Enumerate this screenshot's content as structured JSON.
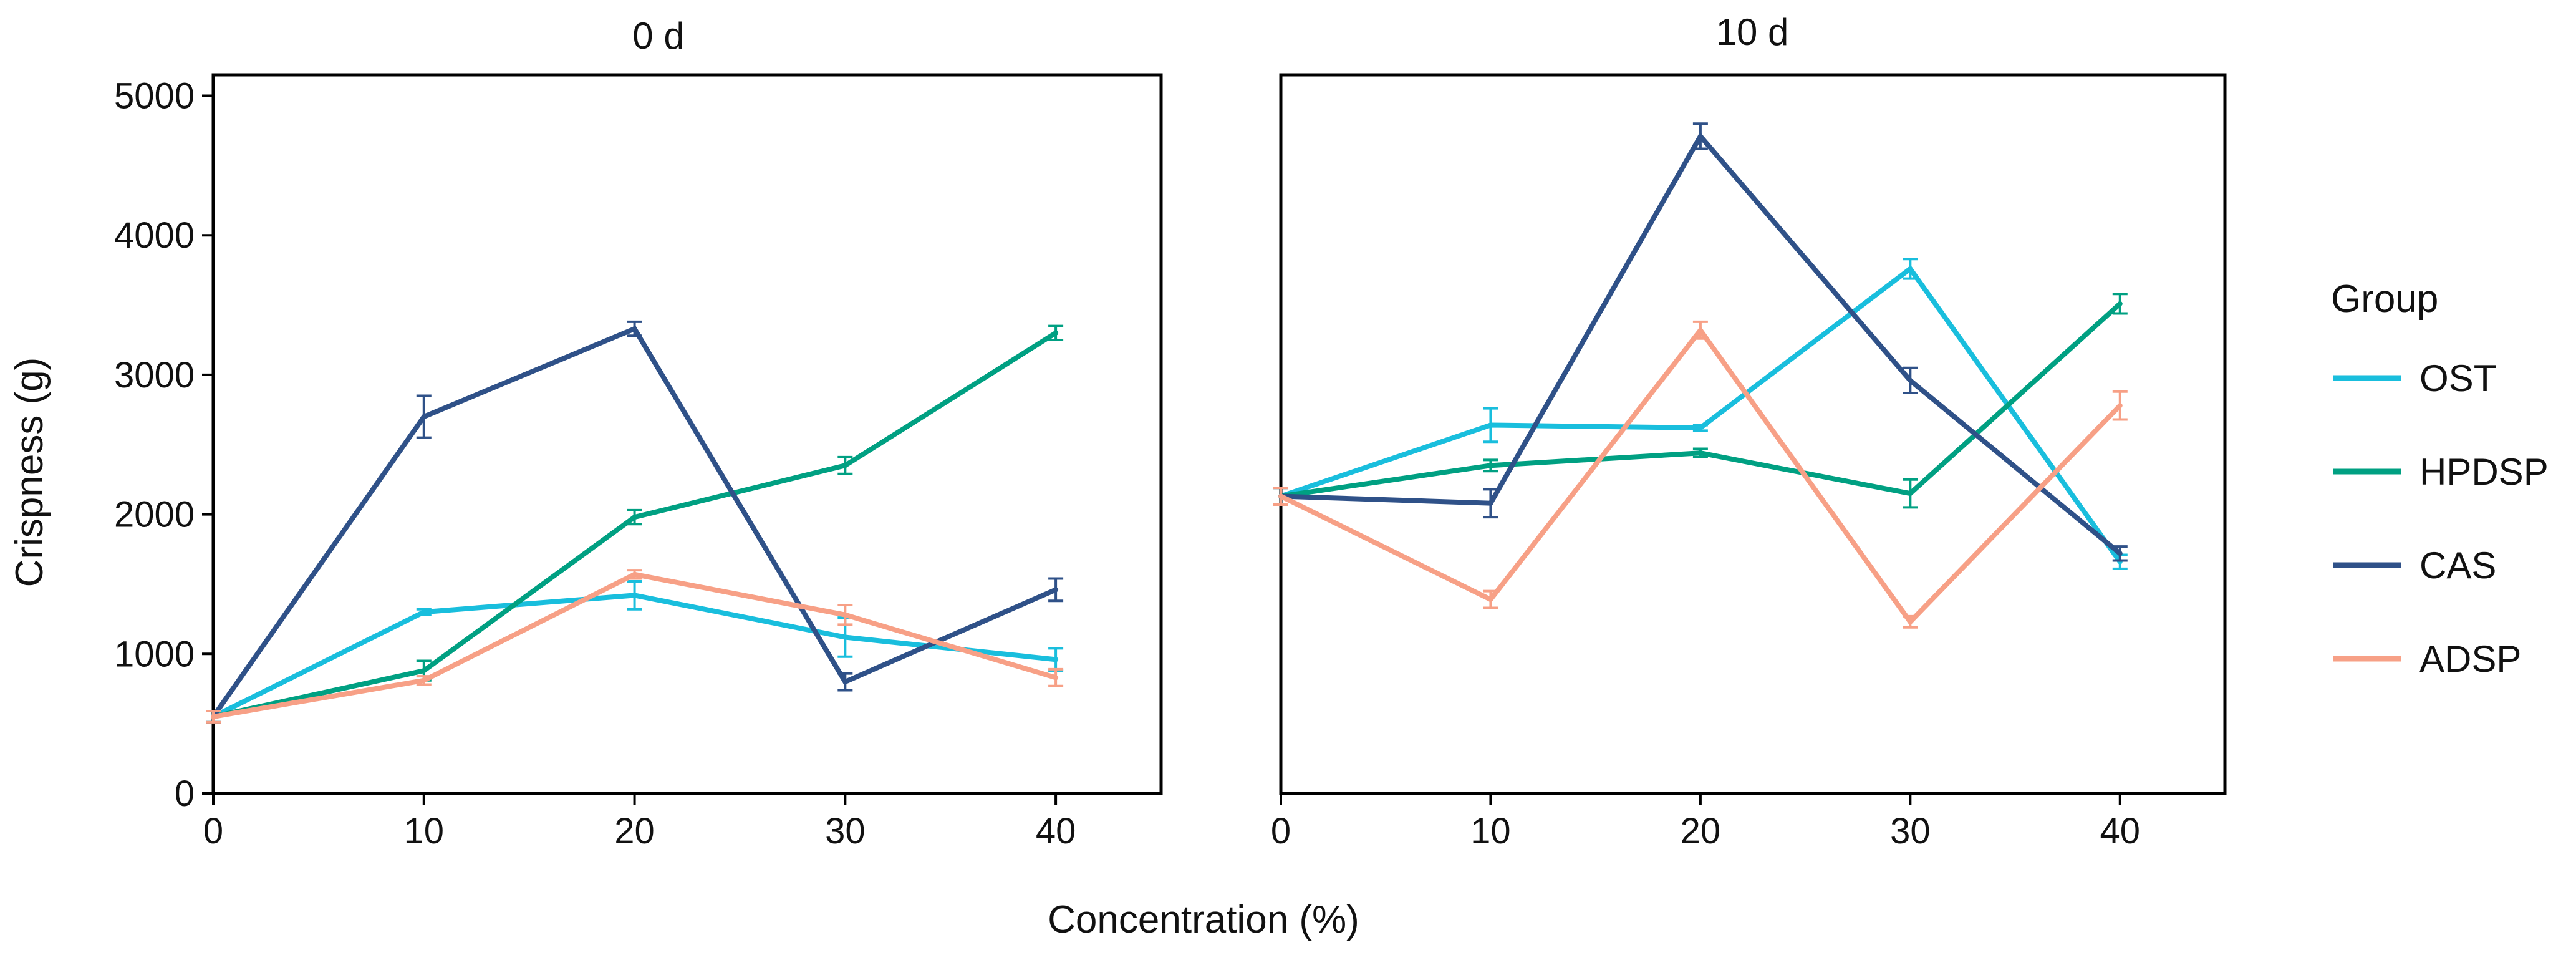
{
  "chart_data": {
    "type": "line",
    "xlabel": "Concentration (%)",
    "ylabel": "Crispness (g)",
    "xlim": [
      0,
      45
    ],
    "ylim": [
      0,
      5150
    ],
    "x_ticks": [
      0,
      10,
      20,
      30,
      40
    ],
    "y_ticks": [
      0,
      1000,
      2000,
      3000,
      4000,
      5000
    ],
    "grid": false,
    "legend": {
      "title": "Group",
      "placement": "right",
      "entries": [
        {
          "name": "OST",
          "color": "#19BEDD"
        },
        {
          "name": "HPDSP",
          "color": "#00A082"
        },
        {
          "name": "CAS",
          "color": "#2F5188"
        },
        {
          "name": "ADSP",
          "color": "#F7A086"
        }
      ]
    },
    "panels": [
      {
        "title": "0 d",
        "x": [
          0,
          10,
          20,
          30,
          40
        ],
        "series": [
          {
            "name": "OST",
            "color": "#19BEDD",
            "values": [
              550,
              1300,
              1420,
              1120,
              960
            ],
            "errors": [
              40,
              20,
              100,
              140,
              80
            ]
          },
          {
            "name": "HPDSP",
            "color": "#00A082",
            "values": [
              550,
              880,
              1980,
              2350,
              3300
            ],
            "errors": [
              40,
              70,
              50,
              60,
              50
            ]
          },
          {
            "name": "CAS",
            "color": "#2F5188",
            "values": [
              550,
              2700,
              3330,
              800,
              1460
            ],
            "errors": [
              40,
              150,
              50,
              60,
              80
            ]
          },
          {
            "name": "ADSP",
            "color": "#F7A086",
            "values": [
              550,
              810,
              1570,
              1280,
              830
            ],
            "errors": [
              40,
              30,
              30,
              70,
              60
            ]
          }
        ]
      },
      {
        "title": "10 d",
        "x": [
          0,
          10,
          20,
          30,
          40
        ],
        "series": [
          {
            "name": "OST",
            "color": "#19BEDD",
            "values": [
              2130,
              2640,
              2620,
              3760,
              1660
            ],
            "errors": [
              60,
              120,
              20,
              70,
              50
            ]
          },
          {
            "name": "HPDSP",
            "color": "#00A082",
            "values": [
              2130,
              2350,
              2440,
              2150,
              3510
            ],
            "errors": [
              60,
              40,
              30,
              100,
              70
            ]
          },
          {
            "name": "CAS",
            "color": "#2F5188",
            "values": [
              2130,
              2080,
              4710,
              2960,
              1720
            ],
            "errors": [
              60,
              100,
              90,
              90,
              50
            ]
          },
          {
            "name": "ADSP",
            "color": "#F7A086",
            "values": [
              2130,
              1390,
              3320,
              1230,
              2780
            ],
            "errors": [
              60,
              60,
              60,
              40,
              100
            ]
          }
        ]
      }
    ]
  }
}
